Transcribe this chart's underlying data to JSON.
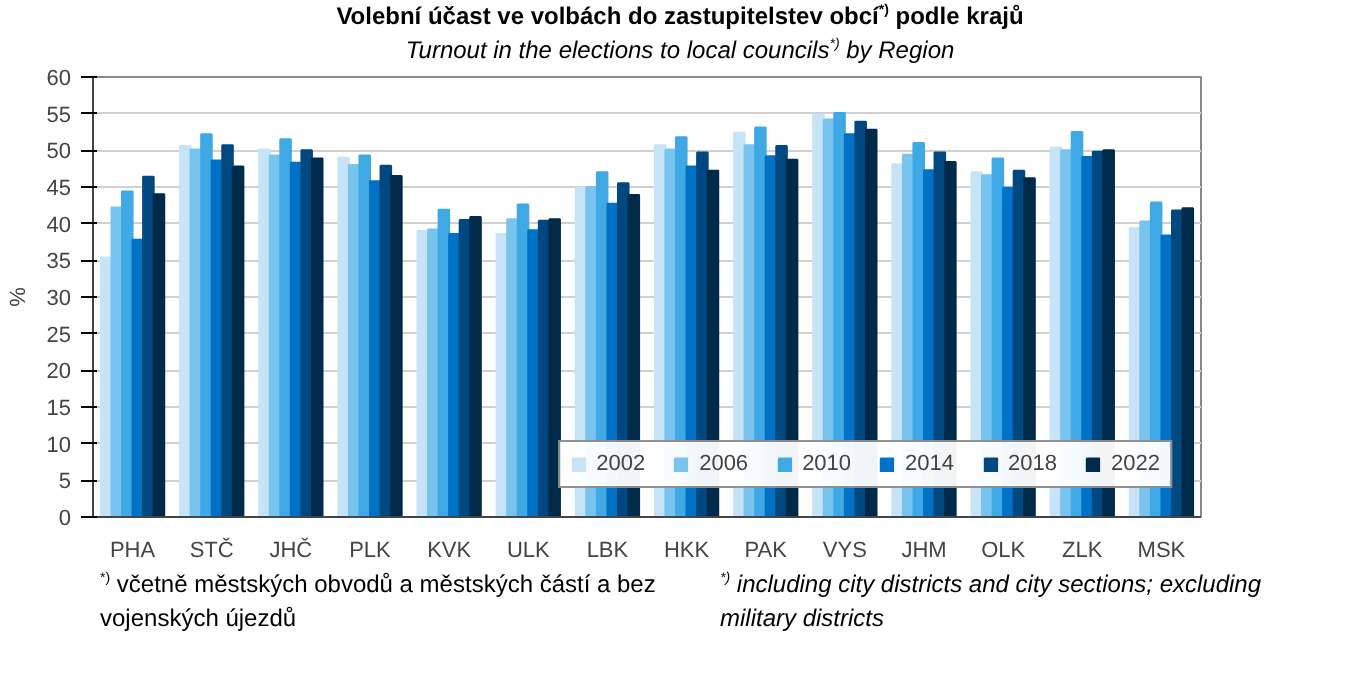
{
  "chart_data": {
    "type": "bar",
    "title": "Volební účast ve volbách do zastupitelstev obcí$^{*)}$ podle krajů",
    "subtitle": "Turnout in the elections to local councils$^{*)}$ by Region",
    "ylabel": "%",
    "categories": [
      "PHA",
      "STČ",
      "JHČ",
      "PLK",
      "KVK",
      "ULK",
      "LBK",
      "HKK",
      "PAK",
      "VYS",
      "JHM",
      "OLK",
      "ZLK",
      "MSK"
    ],
    "series": [
      {
        "name": "2002",
        "color": "#c6e3f7",
        "values": [
          35.4,
          50.6,
          50.1,
          49.0,
          39.0,
          38.6,
          44.9,
          50.7,
          52.4,
          54.9,
          48.1,
          47.0,
          50.4,
          39.4
        ]
      },
      {
        "name": "2006",
        "color": "#79c3ef",
        "values": [
          42.2,
          50.1,
          49.3,
          48.0,
          39.2,
          40.6,
          45.0,
          50.1,
          50.7,
          54.2,
          49.4,
          46.6,
          50.0,
          40.3
        ]
      },
      {
        "name": "2010",
        "color": "#3fa9e6",
        "values": [
          44.4,
          52.2,
          51.5,
          49.3,
          41.9,
          42.6,
          47.0,
          51.8,
          53.1,
          55.1,
          51.0,
          48.9,
          52.5,
          42.9
        ]
      },
      {
        "name": "2014",
        "color": "#0072c6",
        "values": [
          37.8,
          48.6,
          48.3,
          45.8,
          38.6,
          39.1,
          42.7,
          47.8,
          49.2,
          52.2,
          47.3,
          44.9,
          49.1,
          38.4
        ]
      },
      {
        "name": "2018",
        "color": "#00487f",
        "values": [
          46.4,
          50.7,
          50.0,
          47.9,
          40.5,
          40.4,
          45.5,
          49.7,
          50.6,
          53.9,
          49.7,
          47.2,
          49.8,
          41.8
        ]
      },
      {
        "name": "2022",
        "color": "#002a4a",
        "values": [
          44.0,
          47.8,
          48.9,
          46.5,
          40.9,
          40.6,
          43.9,
          47.2,
          48.7,
          52.8,
          48.4,
          46.2,
          50.0,
          42.1
        ]
      }
    ],
    "ylim": [
      0,
      60
    ],
    "yticks": [
      0,
      5,
      10,
      15,
      20,
      25,
      30,
      35,
      40,
      45,
      50,
      55,
      60
    ],
    "grid": "y",
    "legend": "bottom right",
    "annotations": [
      "$^{*)}$ včetně městských obvodů a městských částí a bez vojenských újezdů",
      "$^{*)}$ including city districts and city sections; excluding military districts"
    ]
  }
}
